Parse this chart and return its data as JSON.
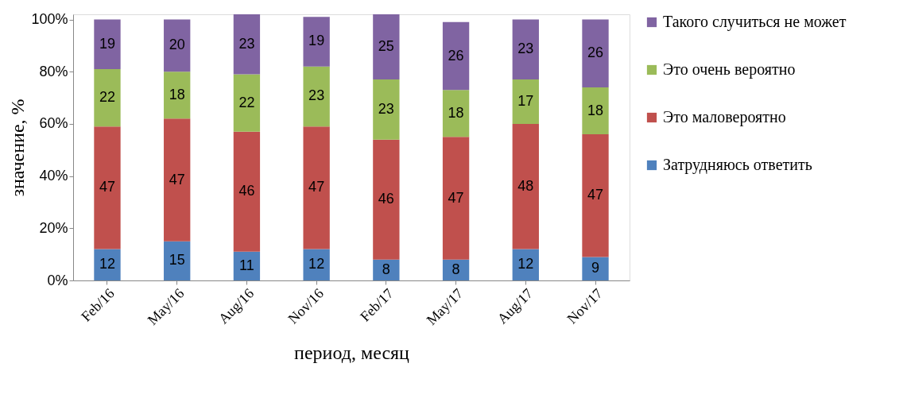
{
  "chart_data": {
    "type": "bar",
    "stacked": true,
    "xlabel": "период, месяц",
    "ylabel": "значение, %",
    "categories": [
      "Feb/16",
      "May/16",
      "Aug/16",
      "Nov/16",
      "Feb/17",
      "May/17",
      "Aug/17",
      "Nov/17"
    ],
    "series": [
      {
        "name": "Затрудняюсь ответить",
        "color": "#4f81bd",
        "values": [
          12,
          15,
          11,
          12,
          8,
          8,
          12,
          9
        ]
      },
      {
        "name": "Это маловероятно",
        "color": "#c0504d",
        "values": [
          47,
          47,
          46,
          47,
          46,
          47,
          48,
          47
        ]
      },
      {
        "name": "Это очень вероятно",
        "color": "#9bbb59",
        "values": [
          22,
          18,
          22,
          23,
          23,
          18,
          17,
          18
        ]
      },
      {
        "name": "Такого случиться не может",
        "color": "#8064a2",
        "values": [
          19,
          20,
          23,
          19,
          25,
          26,
          23,
          26
        ]
      }
    ],
    "ylim": [
      0,
      102
    ],
    "yticks": [
      {
        "value": 0,
        "label": "0%"
      },
      {
        "value": 20,
        "label": "20%"
      },
      {
        "value": 40,
        "label": "40%"
      },
      {
        "value": 60,
        "label": "60%"
      },
      {
        "value": 80,
        "label": "80%"
      },
      {
        "value": 100,
        "label": "100%"
      }
    ],
    "data_labels": true,
    "legend": "right",
    "grid": false
  }
}
